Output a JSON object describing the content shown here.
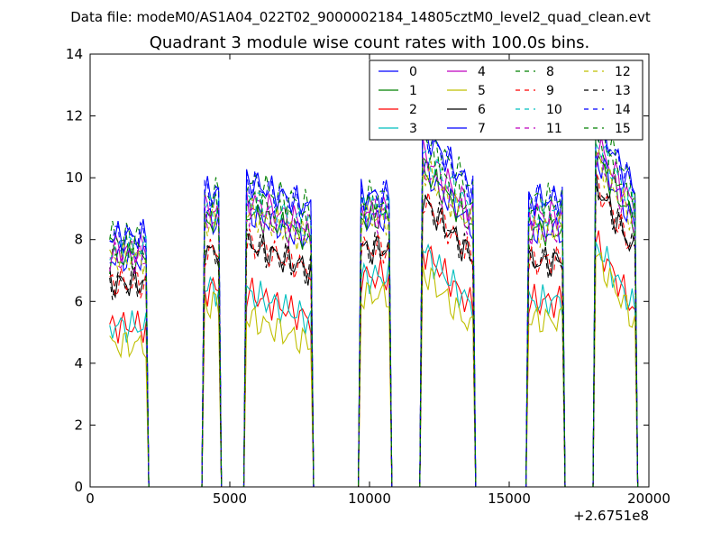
{
  "figure": {
    "suptitle": "Data file: modeM0/AS1A04_022T02_9000002184_14805cztM0_level2_quad_clean.evt"
  },
  "chart_data": {
    "type": "line",
    "title": "Quadrant 3 module wise count rates with 100.0s bins.",
    "xlabel": "",
    "ylabel": "",
    "x_offset_label": "+2.6751e8",
    "xlim": [
      0,
      20000
    ],
    "ylim": [
      0,
      14
    ],
    "xticks": [
      0,
      5000,
      10000,
      15000,
      20000
    ],
    "yticks": [
      0,
      2,
      4,
      6,
      8,
      10,
      12,
      14
    ],
    "grid": false,
    "legend_position": "top-right",
    "legend_columns": 4,
    "x": [
      700,
      800,
      900,
      1000,
      1100,
      1200,
      1300,
      1400,
      1500,
      1600,
      1700,
      1800,
      1900,
      2000,
      2100,
      2200,
      2300,
      2400,
      2600,
      2800,
      3000,
      3200,
      3400,
      3600,
      3800,
      3900,
      4000,
      4100,
      4200,
      4300,
      4400,
      4500,
      4600,
      4700,
      4800,
      4900,
      5000,
      5100,
      5200,
      5300,
      5400,
      5500,
      5600,
      5700,
      5800,
      5900,
      6000,
      6100,
      6200,
      6300,
      6400,
      6500,
      6600,
      6700,
      6800,
      6900,
      7000,
      7100,
      7200,
      7300,
      7400,
      7500,
      7600,
      7700,
      7800,
      7900,
      8000,
      8100,
      8200,
      8300,
      8500,
      8700,
      8900,
      9100,
      9300,
      9500,
      9600,
      9700,
      9800,
      9900,
      10000,
      10100,
      10200,
      10300,
      10400,
      10500,
      10600,
      10700,
      10800,
      10900,
      11000,
      11100,
      11200,
      11400,
      11600,
      11700,
      11800,
      11900,
      12000,
      12100,
      12200,
      12300,
      12400,
      12500,
      12600,
      12700,
      12800,
      12900,
      13000,
      13100,
      13200,
      13300,
      13400,
      13500,
      13600,
      13700,
      13800,
      13900,
      14000,
      14200,
      14400,
      14600,
      14800,
      15000,
      15200,
      15400,
      15500,
      15600,
      15700,
      15800,
      15900,
      16000,
      16100,
      16200,
      16300,
      16400,
      16500,
      16600,
      16700,
      16800,
      16900,
      17000,
      17100,
      17200,
      17400,
      17600,
      17800,
      17900,
      18000,
      18100,
      18200,
      18300,
      18400,
      18500,
      18600,
      18700,
      18800,
      18900,
      19000,
      19100,
      19200,
      19300,
      19400,
      19500,
      19600
    ],
    "series": [
      {
        "name": "0",
        "color": "#0000ff",
        "dash": "solid",
        "level": "mid"
      },
      {
        "name": "1",
        "color": "#008000",
        "dash": "solid",
        "level": "mid"
      },
      {
        "name": "2",
        "color": "#ff0000",
        "dash": "solid",
        "level": "low"
      },
      {
        "name": "3",
        "color": "#00bfbf",
        "dash": "solid",
        "level": "low"
      },
      {
        "name": "4",
        "color": "#bf00bf",
        "dash": "solid",
        "level": "midhigh"
      },
      {
        "name": "5",
        "color": "#bfbf00",
        "dash": "solid",
        "level": "lowest"
      },
      {
        "name": "6",
        "color": "#000000",
        "dash": "solid",
        "level": "midlow"
      },
      {
        "name": "7",
        "color": "#0000ff",
        "dash": "solid",
        "level": "high"
      },
      {
        "name": "8",
        "color": "#008000",
        "dash": "dashed",
        "level": "high"
      },
      {
        "name": "9",
        "color": "#ff0000",
        "dash": "dashed",
        "level": "midlow"
      },
      {
        "name": "10",
        "color": "#00bfbf",
        "dash": "dashed",
        "level": "midhigh"
      },
      {
        "name": "11",
        "color": "#bf00bf",
        "dash": "dashed",
        "level": "mid"
      },
      {
        "name": "12",
        "color": "#bfbf00",
        "dash": "dashed",
        "level": "mid"
      },
      {
        "name": "13",
        "color": "#000000",
        "dash": "dashed",
        "level": "midlow"
      },
      {
        "name": "14",
        "color": "#0000ff",
        "dash": "dashed",
        "level": "high"
      },
      {
        "name": "15",
        "color": "#008000",
        "dash": "dashed",
        "level": "midhigh"
      }
    ]
  }
}
